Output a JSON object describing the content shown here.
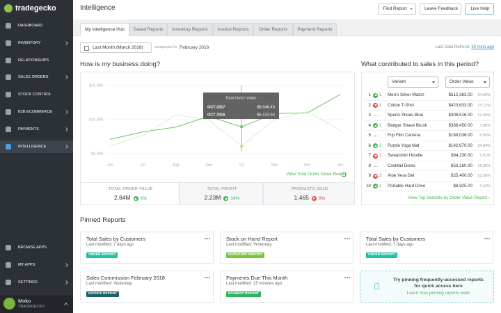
{
  "sidebar": {
    "logo": "tradegecko",
    "items": [
      {
        "label": "DASHBOARD",
        "arrow": false,
        "active": false
      },
      {
        "label": "INVENTORY",
        "arrow": true,
        "active": false
      },
      {
        "label": "RELATIONSHIPS",
        "arrow": false,
        "active": false
      },
      {
        "label": "SALES ORDERS",
        "arrow": true,
        "active": false
      },
      {
        "label": "STOCK CONTROL",
        "arrow": false,
        "active": false
      },
      {
        "label": "B2B ECOMMERCE",
        "arrow": true,
        "active": false
      },
      {
        "label": "PAYMENTS",
        "arrow": true,
        "active": false
      },
      {
        "label": "INTELLIGENCE",
        "arrow": true,
        "active": true
      }
    ],
    "bottom_items": [
      {
        "label": "BROWSE APPS",
        "arrow": false
      },
      {
        "label": "MY APPS",
        "arrow": true
      },
      {
        "label": "SETTINGS",
        "arrow": true
      }
    ],
    "user": {
      "name": "Moko",
      "company": "TRADEGECKO"
    }
  },
  "header": {
    "title": "Intelligence",
    "buttons": [
      "Find Report",
      "Leave Feedback",
      "Live Help"
    ]
  },
  "tabs": [
    {
      "label": "My Intelligence Hub",
      "active": true
    },
    {
      "label": "Saved Reports",
      "active": false
    },
    {
      "label": "Inventory Reports",
      "active": false
    },
    {
      "label": "Invoice Reports",
      "active": false
    },
    {
      "label": "Order Reports",
      "active": false
    },
    {
      "label": "Payment Reports",
      "active": false
    }
  ],
  "filters": {
    "period": "Last Month (March 2018)",
    "compared_label": "compared to",
    "compared_period": "February 2018",
    "refresh_label": "Last Data Refresh:",
    "refresh_value": "30 mins ago"
  },
  "performance": {
    "title": "How is my business doing?",
    "chart": {
      "type": "line",
      "categories": [
        "Jun",
        "Jul",
        "Aug",
        "Sep",
        "Oct",
        "Nov",
        "Dec",
        "Jan"
      ],
      "ylim": [
        5000,
        15000
      ],
      "yticks": [
        {
          "value": 5000,
          "label": "$5,000"
        },
        {
          "value": 10000,
          "label": "$10,000"
        },
        {
          "value": 15000,
          "label": "$15,000"
        }
      ],
      "grid": true,
      "series": [
        {
          "name": "OCT 2017",
          "color": "#6cc46a",
          "dashed": false,
          "values": [
            7100,
            8200,
            8900,
            10500,
            8948.45,
            10900,
            11000,
            13700
          ]
        },
        {
          "name": "OCT 2016",
          "color": "#b5e09e",
          "dashed": true,
          "values": [
            6100,
            7700,
            10700,
            10000,
            6123.54,
            10000,
            11200,
            8400
          ]
        }
      ],
      "tooltip": {
        "title": "Total Order Value",
        "values": [
          "$8,948.45",
          "$6,123.54"
        ]
      }
    },
    "link": "View Total Order Value Report",
    "summary": [
      {
        "label": "TOTAL ORDER VALUE",
        "value": "2.84M",
        "change": "9%",
        "direction": "up"
      },
      {
        "label": "TOTAL PROFIT",
        "value": "2.23M",
        "change": "14%",
        "direction": "up"
      },
      {
        "label": "PRODUCTS SOLD",
        "value": "1,465",
        "change": "6%",
        "direction": "down"
      }
    ]
  },
  "contributors": {
    "title": "What contributed to sales in this period?",
    "dimension": "Variant",
    "metric": "Order Value",
    "rows": [
      {
        "rank": "1",
        "change": "1",
        "direction": "up",
        "name": "Men's Silver Watch",
        "value": "$512,383.00",
        "share": "34.00%"
      },
      {
        "rank": "2",
        "change": "1",
        "direction": "down",
        "name": "Cotton T-Shirt",
        "value": "$423,633.00",
        "share": "15.12%"
      },
      {
        "rank": "3",
        "direction": "none",
        "name": "Sports Shoes Blue",
        "value": "$408,516.00",
        "share": "12.60%"
      },
      {
        "rank": "4",
        "change": "1",
        "direction": "up",
        "name": "Badger Shave Brush",
        "value": "$366,450.00",
        "share": "3.86%"
      },
      {
        "rank": "5",
        "direction": "none",
        "name": "Fuji Film Camera",
        "value": "$169,036.00",
        "share": "6.56%"
      },
      {
        "rank": "6",
        "change": "2",
        "direction": "up",
        "name": "Purple Yoga Mat",
        "value": "$142,670.00",
        "share": "34.84%"
      },
      {
        "rank": "7",
        "change": "1",
        "direction": "down",
        "name": "Sweatshirt Hoodie",
        "value": "$84,230.00",
        "share": "5.01%"
      },
      {
        "rank": "8",
        "direction": "none",
        "name": "Cocktail Dress",
        "value": "$53,160.00",
        "share": "15.66%"
      },
      {
        "rank": "9",
        "change": "2",
        "direction": "down",
        "name": "Aloe Vera Gel",
        "value": "$25,400.00",
        "share": "23.06%"
      },
      {
        "rank": "10",
        "change": "1",
        "direction": "up",
        "name": "Portable Hard Drive",
        "value": "$8,925.00",
        "share": "2.44%"
      }
    ],
    "link": "View Top Variants by Order Value Report ›"
  },
  "pinned": {
    "title": "Pinned Reports",
    "cards": [
      {
        "title": "Total Sales by Customers",
        "modified": "Last modified: 7 days ago",
        "type": "ORDER REPORT",
        "color": "#22bfa3"
      },
      {
        "title": "Stock on Hand Report",
        "modified": "Last modified: Yesterday",
        "type": "INVENTORY REPORT",
        "color": "#7cc242"
      },
      {
        "title": "Total Sales by Customers",
        "modified": "Last modified: 7 days ago",
        "type": "ORDER REPORT",
        "color": "#22bfa3"
      },
      {
        "title": "Sales Commission February 2018",
        "modified": "Last modified: Yesterday",
        "type": "INVOICE REPORT",
        "color": "#1d5f6e"
      },
      {
        "title": "Payments Due This Month",
        "modified": "Last modified: 15 minutes ago",
        "type": "PAYMENT REPORT",
        "color": "#2db55d"
      }
    ],
    "empty": {
      "text": "Try pinning frequently-accessed reports for quick access here",
      "link": "Learn how pinning reports work"
    }
  }
}
